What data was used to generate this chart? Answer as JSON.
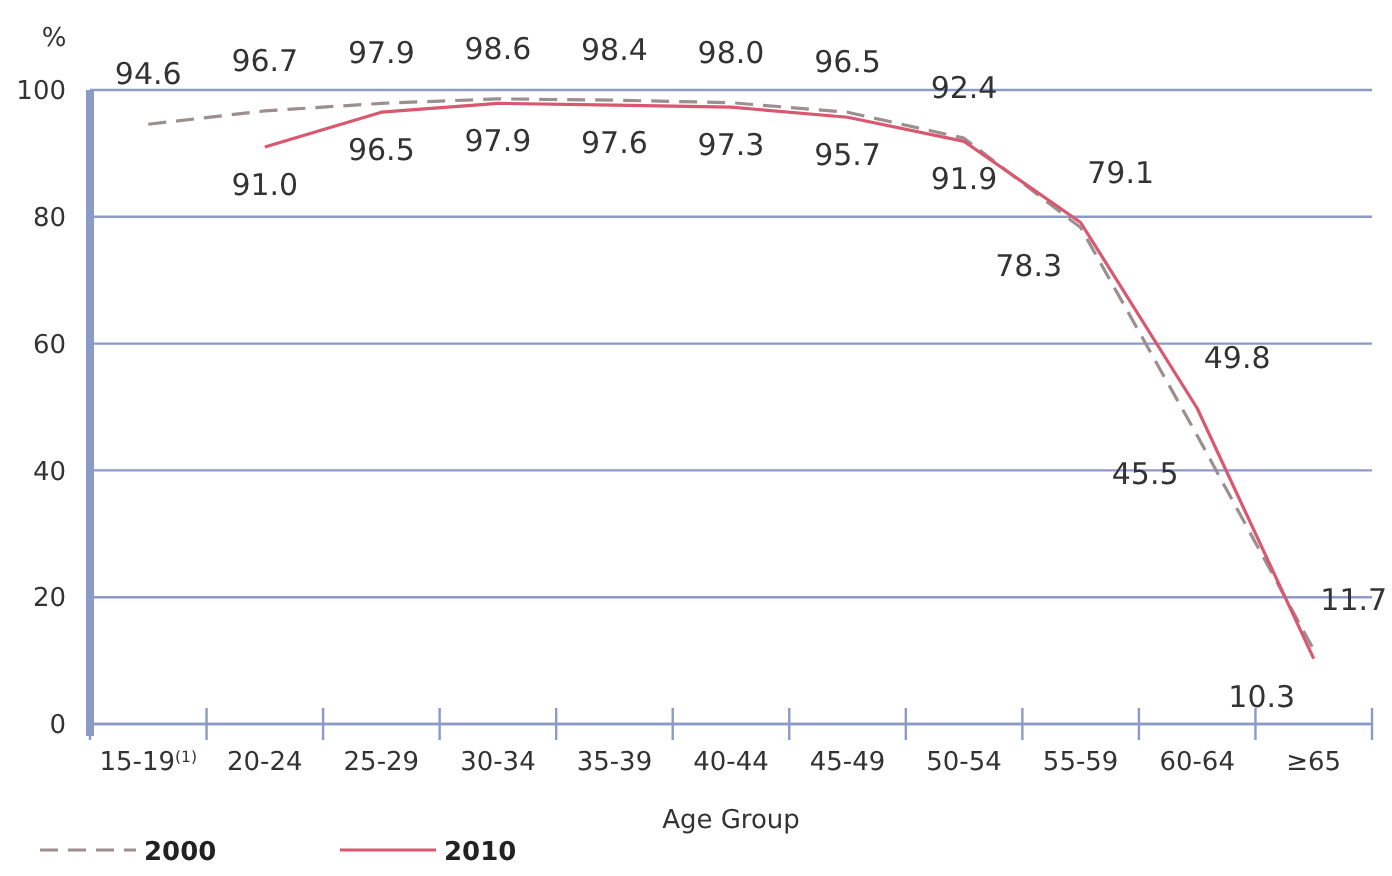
{
  "chart_data": {
    "type": "line",
    "ylabel": "%",
    "xlabel": "Age Group",
    "categories": [
      "15-19$^{(1)}$",
      "20-24",
      "25-29",
      "30-34",
      "35-39",
      "40-44",
      "45-49",
      "50-54",
      "55-59",
      "60-64",
      "≥65"
    ],
    "series": [
      {
        "name": "2000",
        "color": "#9b8f8f",
        "line_style": "dashed",
        "values": [
          94.6,
          96.7,
          97.9,
          98.6,
          98.4,
          98.0,
          96.5,
          92.4,
          78.3,
          45.5,
          11.7
        ],
        "value_labels": [
          "94.6",
          "96.7",
          "97.9",
          "98.6",
          "98.4",
          "98.0",
          "96.5",
          "92.4",
          "78.3",
          "45.5",
          "11.7"
        ]
      },
      {
        "name": "2010",
        "color": "#d9576f",
        "line_style": "solid",
        "values": [
          null,
          91.0,
          96.5,
          97.9,
          97.6,
          97.3,
          95.7,
          91.9,
          79.1,
          49.8,
          10.3
        ],
        "value_labels": [
          null,
          "91.0",
          "96.5",
          "97.9",
          "97.6",
          "97.3",
          "95.7",
          "91.9",
          "79.1",
          "49.8",
          "10.3"
        ]
      }
    ],
    "ylim": [
      0,
      100
    ],
    "yticks": [
      0,
      20,
      40,
      60,
      80,
      100
    ],
    "grid": "y",
    "legend": "bottom left"
  }
}
